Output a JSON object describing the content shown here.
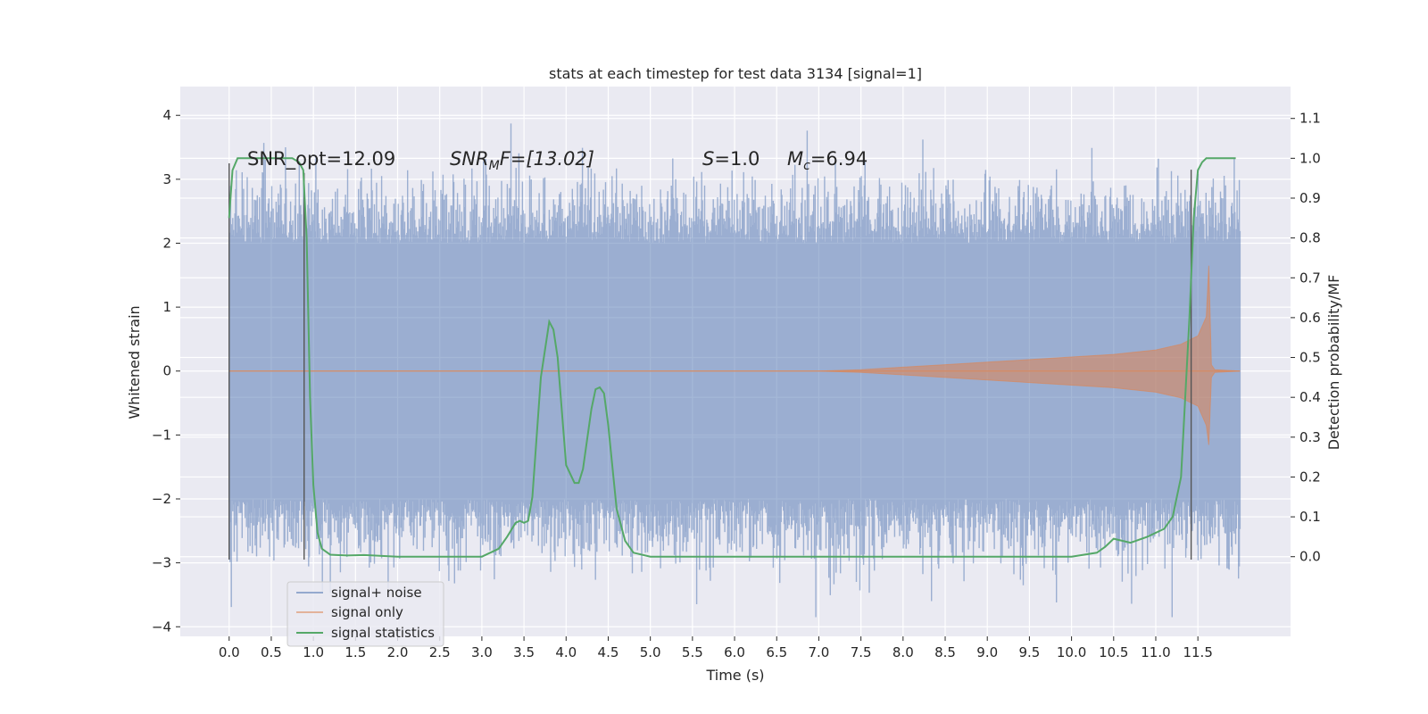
{
  "chart_data": {
    "type": "line",
    "title": "stats at each timestep for test data 3134 [signal=1]",
    "xlabel": "Time (s)",
    "ylabel_left": "Whitened strain",
    "ylabel_right": "Detection probability/MF",
    "xlim": [
      -0.58,
      12.6
    ],
    "ylim_left": [
      -4.15,
      4.45
    ],
    "ylim_right": [
      -0.2,
      1.18
    ],
    "x_ticks": [
      "0.0",
      "0.5",
      "1.0",
      "1.5",
      "2.0",
      "2.5",
      "3.0",
      "3.5",
      "4.0",
      "4.5",
      "5.0",
      "5.5",
      "6.0",
      "6.5",
      "7.0",
      "7.5",
      "8.0",
      "8.5",
      "9.0",
      "9.5",
      "10.0",
      "10.5",
      "11.0",
      "11.5"
    ],
    "y_left_ticks": [
      "4",
      "3",
      "2",
      "1",
      "0",
      "−1",
      "−2",
      "−3",
      "−4"
    ],
    "y_right_ticks": [
      "1.1",
      "1.0",
      "0.9",
      "0.8",
      "0.7",
      "0.6",
      "0.5",
      "0.4",
      "0.3",
      "0.2",
      "0.1",
      "0.0"
    ],
    "grid": true,
    "background": "#eaeaf2",
    "legend_position": "lower-left",
    "annotations": {
      "snr_opt": "SNR_opt=12.09",
      "snr_mf_prefix": "SNR",
      "snr_mf_sub": "M",
      "snr_mf_suffix": "F=[13.02]",
      "s_var": "S",
      "s_val": "=1.0",
      "mc_var": "M",
      "mc_sub": "c",
      "mc_val": "=6.94"
    },
    "vertical_markers": [
      {
        "x": 0.0,
        "y": [
          -2.95,
          3.25
        ]
      },
      {
        "x": 0.89,
        "y": [
          -2.95,
          3.1
        ]
      },
      {
        "x": 11.42,
        "y": [
          -2.95,
          3.15
        ]
      }
    ],
    "series": [
      {
        "name": "signal+ noise",
        "color": "#4c72b0",
        "x_range": [
          0.0,
          12.0
        ],
        "envelope_typical": [
          -2.0,
          2.0
        ],
        "envelope_extreme": [
          -3.85,
          4.1
        ]
      },
      {
        "name": "signal only",
        "color": "#dd8452",
        "x": [
          0.0,
          7.0,
          7.5,
          8.0,
          8.5,
          9.0,
          9.5,
          10.0,
          10.5,
          11.0,
          11.3,
          11.5,
          11.6,
          11.63,
          11.66,
          11.7,
          12.0
        ],
        "amplitude": [
          0.0,
          0.0,
          0.02,
          0.06,
          0.1,
          0.14,
          0.18,
          0.22,
          0.26,
          0.33,
          0.42,
          0.55,
          0.85,
          1.65,
          0.1,
          0.02,
          0.0
        ]
      },
      {
        "name": "signal statistics",
        "color": "#55a868",
        "axis": "right",
        "x": [
          0.0,
          0.04,
          0.1,
          0.2,
          0.4,
          0.6,
          0.75,
          0.83,
          0.88,
          0.92,
          0.96,
          1.0,
          1.05,
          1.1,
          1.2,
          1.4,
          1.6,
          2.0,
          2.5,
          3.0,
          3.2,
          3.3,
          3.4,
          3.45,
          3.5,
          3.55,
          3.6,
          3.7,
          3.8,
          3.85,
          3.9,
          4.0,
          4.1,
          4.15,
          4.2,
          4.3,
          4.35,
          4.4,
          4.45,
          4.5,
          4.6,
          4.7,
          4.8,
          5.0,
          5.5,
          6.0,
          7.0,
          8.0,
          9.0,
          10.0,
          10.3,
          10.4,
          10.5,
          10.6,
          10.7,
          10.9,
          11.1,
          11.2,
          11.3,
          11.4,
          11.45,
          11.5,
          11.55,
          11.6,
          11.8,
          11.95
        ],
        "y": [
          0.85,
          0.97,
          1.0,
          1.0,
          1.0,
          1.0,
          1.0,
          0.99,
          0.97,
          0.8,
          0.4,
          0.18,
          0.06,
          0.02,
          0.005,
          0.003,
          0.004,
          0.0,
          0.0,
          0.0,
          0.02,
          0.05,
          0.085,
          0.09,
          0.085,
          0.09,
          0.15,
          0.45,
          0.59,
          0.57,
          0.5,
          0.23,
          0.185,
          0.185,
          0.22,
          0.37,
          0.42,
          0.425,
          0.41,
          0.33,
          0.12,
          0.04,
          0.01,
          0.0,
          0.0,
          0.0,
          0.0,
          0.0,
          0.0,
          0.0,
          0.01,
          0.025,
          0.045,
          0.04,
          0.035,
          0.05,
          0.07,
          0.1,
          0.2,
          0.6,
          0.85,
          0.97,
          0.99,
          1.0,
          1.0,
          1.0
        ]
      }
    ]
  }
}
